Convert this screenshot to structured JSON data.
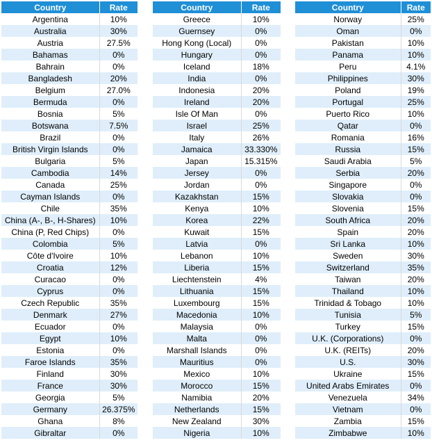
{
  "tables": [
    {
      "header": {
        "country": "Country",
        "rate": "Rate"
      },
      "rows": [
        {
          "country": "Argentina",
          "rate": "10%"
        },
        {
          "country": "Australia",
          "rate": "30%"
        },
        {
          "country": "Austria",
          "rate": "27.5%"
        },
        {
          "country": "Bahamas",
          "rate": "0%"
        },
        {
          "country": "Bahrain",
          "rate": "0%"
        },
        {
          "country": "Bangladesh",
          "rate": "20%"
        },
        {
          "country": "Belgium",
          "rate": "27.0%"
        },
        {
          "country": "Bermuda",
          "rate": "0%"
        },
        {
          "country": "Bosnia",
          "rate": "5%"
        },
        {
          "country": "Botswana",
          "rate": "7.5%"
        },
        {
          "country": "Brazil",
          "rate": "0%"
        },
        {
          "country": "British Virgin Islands",
          "rate": "0%"
        },
        {
          "country": "Bulgaria",
          "rate": "5%"
        },
        {
          "country": "Cambodia",
          "rate": "14%"
        },
        {
          "country": "Canada",
          "rate": "25%"
        },
        {
          "country": "Cayman Islands",
          "rate": "0%"
        },
        {
          "country": "Chile",
          "rate": "35%"
        },
        {
          "country": "China (A-, B-, H-Shares)",
          "rate": "10%"
        },
        {
          "country": "China (P, Red Chips)",
          "rate": "0%"
        },
        {
          "country": "Colombia",
          "rate": "5%"
        },
        {
          "country": "Côte d'Ivoire",
          "rate": "10%"
        },
        {
          "country": "Croatia",
          "rate": "12%"
        },
        {
          "country": "Curacao",
          "rate": "0%"
        },
        {
          "country": "Cyprus",
          "rate": "0%"
        },
        {
          "country": "Czech Republic",
          "rate": "35%"
        },
        {
          "country": "Denmark",
          "rate": "27%"
        },
        {
          "country": "Ecuador",
          "rate": "0%"
        },
        {
          "country": "Egypt",
          "rate": "10%"
        },
        {
          "country": "Estonia",
          "rate": "0%"
        },
        {
          "country": "Faroe Islands",
          "rate": "35%"
        },
        {
          "country": "Finland",
          "rate": "30%"
        },
        {
          "country": "France",
          "rate": "30%"
        },
        {
          "country": "Georgia",
          "rate": "5%"
        },
        {
          "country": "Germany",
          "rate": "26.375%"
        },
        {
          "country": "Ghana",
          "rate": "8%"
        },
        {
          "country": "Gibraltar",
          "rate": "0%"
        }
      ]
    },
    {
      "header": {
        "country": "Country",
        "rate": "Rate"
      },
      "rows": [
        {
          "country": "Greece",
          "rate": "10%"
        },
        {
          "country": "Guernsey",
          "rate": "0%"
        },
        {
          "country": "Hong Kong (Local)",
          "rate": "0%"
        },
        {
          "country": "Hungary",
          "rate": "0%"
        },
        {
          "country": "Iceland",
          "rate": "18%"
        },
        {
          "country": "India",
          "rate": "0%"
        },
        {
          "country": "Indonesia",
          "rate": "20%"
        },
        {
          "country": "Ireland",
          "rate": "20%"
        },
        {
          "country": "Isle Of Man",
          "rate": "0%"
        },
        {
          "country": "Israel",
          "rate": "25%"
        },
        {
          "country": "Italy",
          "rate": "26%"
        },
        {
          "country": "Jamaica",
          "rate": "33.330%"
        },
        {
          "country": "Japan",
          "rate": "15.315%"
        },
        {
          "country": "Jersey",
          "rate": "0%"
        },
        {
          "country": "Jordan",
          "rate": "0%"
        },
        {
          "country": "Kazakhstan",
          "rate": "15%"
        },
        {
          "country": "Kenya",
          "rate": "10%"
        },
        {
          "country": "Korea",
          "rate": "22%"
        },
        {
          "country": "Kuwait",
          "rate": "15%"
        },
        {
          "country": "Latvia",
          "rate": "0%"
        },
        {
          "country": "Lebanon",
          "rate": "10%"
        },
        {
          "country": "Liberia",
          "rate": "15%"
        },
        {
          "country": "Liechtenstein",
          "rate": "4%"
        },
        {
          "country": "Lithuania",
          "rate": "15%"
        },
        {
          "country": "Luxembourg",
          "rate": "15%"
        },
        {
          "country": "Macedonia",
          "rate": "10%"
        },
        {
          "country": "Malaysia",
          "rate": "0%"
        },
        {
          "country": "Malta",
          "rate": "0%"
        },
        {
          "country": "Marshall Islands",
          "rate": "0%"
        },
        {
          "country": "Mauritius",
          "rate": "0%"
        },
        {
          "country": "Mexico",
          "rate": "10%"
        },
        {
          "country": "Morocco",
          "rate": "15%"
        },
        {
          "country": "Namibia",
          "rate": "20%"
        },
        {
          "country": "Netherlands",
          "rate": "15%"
        },
        {
          "country": "New Zealand",
          "rate": "30%"
        },
        {
          "country": "Nigeria",
          "rate": "10%"
        }
      ]
    },
    {
      "header": {
        "country": "Country",
        "rate": "Rate"
      },
      "rows": [
        {
          "country": "Norway",
          "rate": "25%"
        },
        {
          "country": "Oman",
          "rate": "0%"
        },
        {
          "country": "Pakistan",
          "rate": "10%"
        },
        {
          "country": "Panama",
          "rate": "10%"
        },
        {
          "country": "Peru",
          "rate": "4.1%"
        },
        {
          "country": "Philippines",
          "rate": "30%"
        },
        {
          "country": "Poland",
          "rate": "19%"
        },
        {
          "country": "Portugal",
          "rate": "25%"
        },
        {
          "country": "Puerto Rico",
          "rate": "10%"
        },
        {
          "country": "Qatar",
          "rate": "0%"
        },
        {
          "country": "Romania",
          "rate": "16%"
        },
        {
          "country": "Russia",
          "rate": "15%"
        },
        {
          "country": "Saudi Arabia",
          "rate": "5%"
        },
        {
          "country": "Serbia",
          "rate": "20%"
        },
        {
          "country": "Singapore",
          "rate": "0%"
        },
        {
          "country": "Slovakia",
          "rate": "0%"
        },
        {
          "country": "Slovenia",
          "rate": "15%"
        },
        {
          "country": "South Africa",
          "rate": "20%"
        },
        {
          "country": "Spain",
          "rate": "20%"
        },
        {
          "country": "Sri Lanka",
          "rate": "10%"
        },
        {
          "country": "Sweden",
          "rate": "30%"
        },
        {
          "country": "Switzerland",
          "rate": "35%"
        },
        {
          "country": "Taiwan",
          "rate": "20%"
        },
        {
          "country": "Thailand",
          "rate": "10%"
        },
        {
          "country": "Trinidad & Tobago",
          "rate": "10%"
        },
        {
          "country": "Tunisia",
          "rate": "5%"
        },
        {
          "country": "Turkey",
          "rate": "15%"
        },
        {
          "country": "U.K. (Corporations)",
          "rate": "0%"
        },
        {
          "country": "U.K. (REITs)",
          "rate": "20%"
        },
        {
          "country": "U.S.",
          "rate": "30%"
        },
        {
          "country": "Ukraine",
          "rate": "15%"
        },
        {
          "country": "United Arabs Emirates",
          "rate": "0%"
        },
        {
          "country": "Venezuela",
          "rate": "34%"
        },
        {
          "country": "Vietnam",
          "rate": "0%"
        },
        {
          "country": "Zambia",
          "rate": "15%"
        },
        {
          "country": "Zimbabwe",
          "rate": "10%"
        }
      ]
    }
  ],
  "colors": {
    "header_bg": "#1f8fd6",
    "stripe_bg": "#dfeefa",
    "header_text": "#ffffff"
  }
}
